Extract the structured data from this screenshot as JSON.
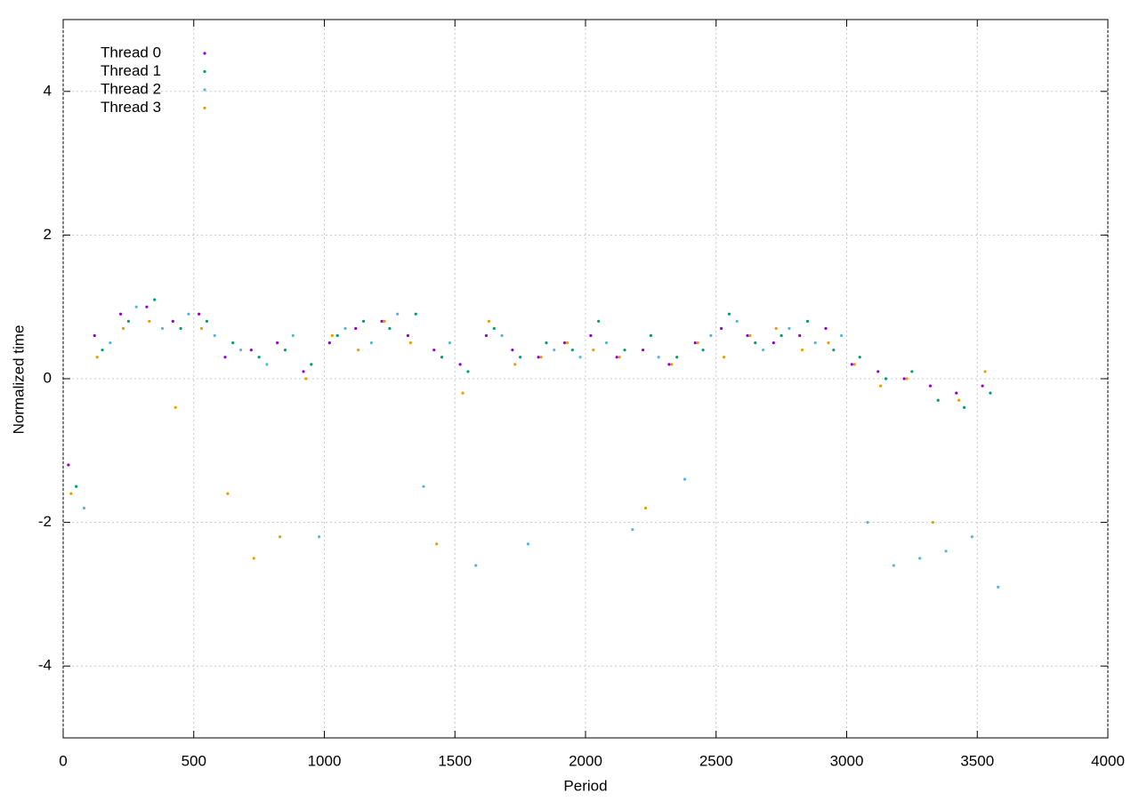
{
  "chart_data": {
    "type": "scatter",
    "xlabel": "Period",
    "ylabel": "Normalized time",
    "xlim": [
      0,
      4000
    ],
    "ylim": [
      -5,
      5
    ],
    "xticks": [
      0,
      500,
      1000,
      1500,
      2000,
      2500,
      3000,
      3500,
      4000
    ],
    "yticks": [
      -4,
      -2,
      0,
      2,
      4
    ],
    "grid": true,
    "legend": "upper-left",
    "series": [
      {
        "name": "Thread 0",
        "color": "#9400d3",
        "x": [
          20,
          120,
          220,
          320,
          420,
          520,
          620,
          720,
          820,
          920,
          1020,
          1120,
          1220,
          1320,
          1420,
          1520,
          1620,
          1720,
          1820,
          1920,
          2020,
          2120,
          2220,
          2320,
          2420,
          2520,
          2620,
          2720,
          2820,
          2920,
          3020,
          3120,
          3220,
          3320,
          3420,
          3520
        ],
        "values": [
          -1.2,
          0.6,
          0.9,
          1.0,
          0.8,
          0.9,
          0.3,
          0.4,
          0.5,
          0.1,
          0.5,
          0.7,
          0.8,
          0.6,
          0.4,
          0.2,
          0.6,
          0.4,
          0.3,
          0.5,
          0.6,
          0.3,
          0.4,
          0.2,
          0.5,
          0.7,
          0.6,
          0.5,
          0.6,
          0.7,
          0.2,
          0.1,
          0.0,
          -0.1,
          -0.2,
          -0.1
        ]
      },
      {
        "name": "Thread 1",
        "color": "#009e73",
        "x": [
          50,
          150,
          250,
          350,
          450,
          550,
          650,
          750,
          850,
          950,
          1050,
          1150,
          1250,
          1350,
          1450,
          1550,
          1650,
          1750,
          1850,
          1950,
          2050,
          2150,
          2250,
          2350,
          2450,
          2550,
          2650,
          2750,
          2850,
          2950,
          3050,
          3150,
          3250,
          3350,
          3450,
          3550
        ],
        "values": [
          -1.5,
          0.4,
          0.8,
          1.1,
          0.7,
          0.8,
          0.5,
          0.3,
          0.4,
          0.2,
          0.6,
          0.8,
          0.7,
          0.9,
          0.3,
          0.1,
          0.7,
          0.3,
          0.5,
          0.4,
          0.8,
          0.4,
          0.6,
          0.3,
          0.4,
          0.9,
          0.5,
          0.6,
          0.8,
          0.4,
          0.3,
          0.0,
          0.1,
          -0.3,
          -0.4,
          -0.2
        ]
      },
      {
        "name": "Thread 2",
        "color": "#56b4e9",
        "x": [
          80,
          180,
          280,
          380,
          480,
          580,
          680,
          780,
          880,
          980,
          1080,
          1180,
          1280,
          1380,
          1480,
          1580,
          1680,
          1780,
          1880,
          1980,
          2080,
          2180,
          2280,
          2380,
          2480,
          2580,
          2680,
          2780,
          2880,
          2980,
          3080,
          3180,
          3280,
          3380,
          3480,
          3580
        ],
        "values": [
          -1.8,
          0.5,
          1.0,
          0.7,
          0.9,
          0.6,
          0.4,
          0.2,
          0.6,
          -2.2,
          0.7,
          0.5,
          0.9,
          -1.5,
          0.5,
          -2.6,
          0.6,
          -2.3,
          0.4,
          0.3,
          0.5,
          -2.1,
          0.3,
          -1.4,
          0.6,
          0.8,
          0.4,
          0.7,
          0.5,
          0.6,
          -2.0,
          -2.6,
          -2.5,
          -2.4,
          -2.2,
          -2.9
        ]
      },
      {
        "name": "Thread 3",
        "color": "#e69f00",
        "x": [
          30,
          130,
          230,
          330,
          430,
          530,
          630,
          730,
          830,
          930,
          1030,
          1130,
          1230,
          1330,
          1430,
          1530,
          1630,
          1730,
          1830,
          1930,
          2030,
          2130,
          2230,
          2330,
          2430,
          2530,
          2630,
          2730,
          2830,
          2930,
          3030,
          3130,
          3230,
          3330,
          3430,
          3530
        ],
        "values": [
          -1.6,
          0.3,
          0.7,
          0.8,
          -0.4,
          0.7,
          -1.6,
          -2.5,
          -2.2,
          0.0,
          0.6,
          0.4,
          0.8,
          0.5,
          -2.3,
          -0.2,
          0.8,
          0.2,
          0.3,
          0.5,
          0.4,
          0.3,
          -1.8,
          0.2,
          0.5,
          0.3,
          0.6,
          0.7,
          0.4,
          0.5,
          0.2,
          -0.1,
          0.0,
          -2.0,
          -0.3,
          0.1
        ]
      }
    ]
  }
}
